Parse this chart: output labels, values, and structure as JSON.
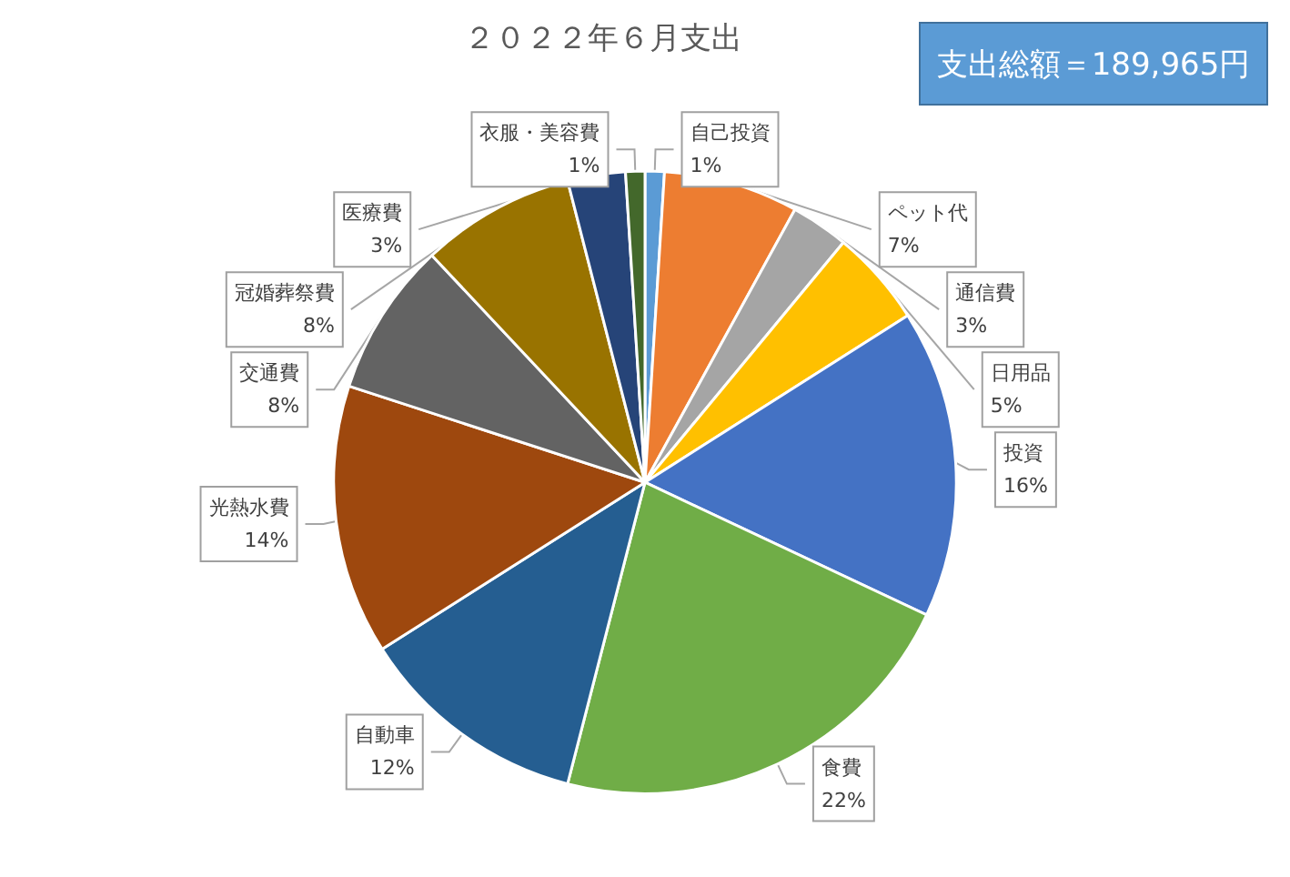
{
  "chart_data": {
    "type": "pie",
    "title": "２０２２年６月支出",
    "categories": [
      "自己投資",
      "ペット代",
      "通信費",
      "日用品",
      "投資",
      "食費",
      "自動車",
      "光熱水費",
      "交通費",
      "冠婚葬祭費",
      "医療費",
      "衣服・美容費"
    ],
    "values": [
      1,
      7,
      3,
      5,
      16,
      22,
      12,
      14,
      8,
      8,
      3,
      1
    ],
    "colors": [
      "#5b9bd5",
      "#ed7d31",
      "#a5a5a5",
      "#ffc000",
      "#4472c4",
      "#70ad47",
      "#255e91",
      "#9e480e",
      "#636363",
      "#997300",
      "#264478",
      "#43682b"
    ],
    "value_labels": [
      "1%",
      "7%",
      "3%",
      "5%",
      "16%",
      "22%",
      "12%",
      "14%",
      "8%",
      "8%",
      "3%",
      "1%"
    ],
    "legend": false,
    "annotations": [
      "支出総額＝189,965円"
    ]
  }
}
